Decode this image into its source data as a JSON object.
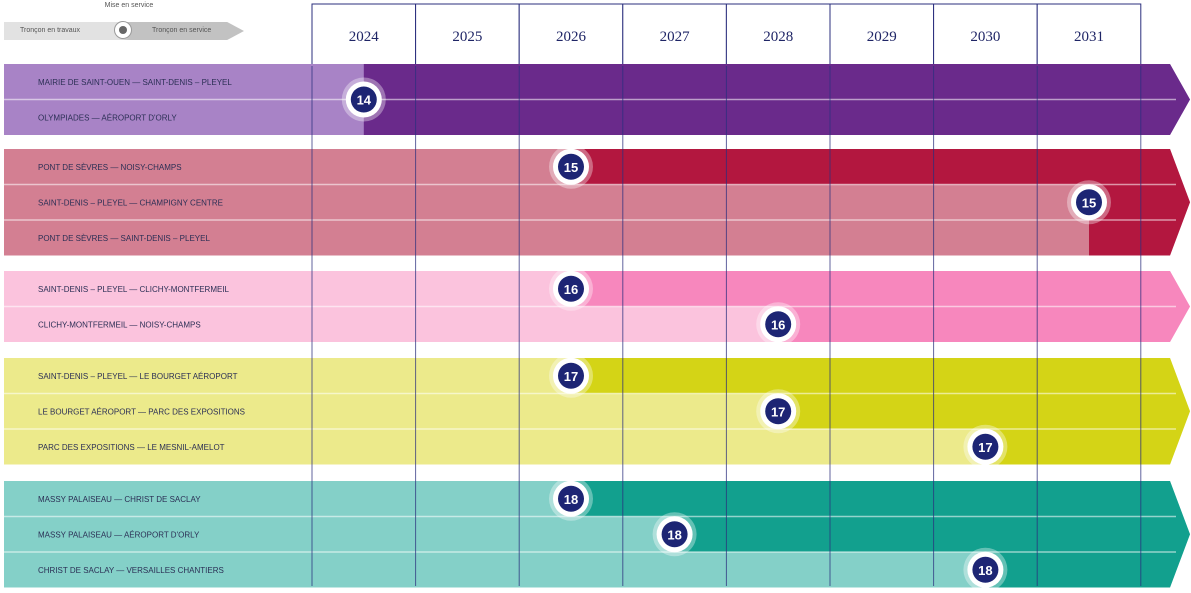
{
  "legend": {
    "title": "Mise en service",
    "under_construction_label": "Tronçon en travaux",
    "in_service_label": "Tronçon en service"
  },
  "chart_data": {
    "type": "timeline",
    "years": [
      "2024",
      "2025",
      "2026",
      "2027",
      "2028",
      "2029",
      "2030",
      "2031"
    ],
    "groups": [
      {
        "line": "14",
        "light_color": "#a883c6",
        "dark_color": "#6a2a8b",
        "sections": [
          {
            "label": "MAIRIE DE SAINT-OUEN — SAINT-DENIS – PLEYEL",
            "opening_year": 2024
          },
          {
            "label": "OLYMPIADES — AÉROPORT D'ORLY",
            "opening_year": 2024
          }
        ],
        "badges": [
          {
            "label": "14",
            "year": 2024
          }
        ]
      },
      {
        "line": "15",
        "light_color": "#d37f92",
        "dark_color": "#b3173f",
        "sections": [
          {
            "label": "PONT DE SÈVRES — NOISY-CHAMPS",
            "opening_year": 2026
          },
          {
            "label": "SAINT-DENIS – PLEYEL — CHAMPIGNY CENTRE",
            "opening_year": 2031
          },
          {
            "label": "PONT DE SÈVRES — SAINT-DENIS – PLEYEL",
            "opening_year": 2031
          }
        ],
        "badges": [
          {
            "label": "15",
            "year": 2026
          },
          {
            "label": "15",
            "year": 2031
          }
        ]
      },
      {
        "line": "16",
        "light_color": "#fbc3dd",
        "dark_color": "#f787bd",
        "sections": [
          {
            "label": "SAINT-DENIS – PLEYEL — CLICHY-MONTFERMEIL",
            "opening_year": 2026
          },
          {
            "label": "CLICHY-MONTFERMEIL — NOISY-CHAMPS",
            "opening_year": 2028
          }
        ],
        "badges": [
          {
            "label": "16",
            "year": 2026
          },
          {
            "label": "16",
            "year": 2028
          }
        ]
      },
      {
        "line": "17",
        "light_color": "#ecea8b",
        "dark_color": "#d4d416",
        "sections": [
          {
            "label": "SAINT-DENIS – PLEYEL — LE BOURGET AÉROPORT",
            "opening_year": 2026
          },
          {
            "label": "LE BOURGET AÉROPORT — PARC DES EXPOSITIONS",
            "opening_year": 2028
          },
          {
            "label": "PARC DES EXPOSITIONS — LE MESNIL-AMELOT",
            "opening_year": 2030
          }
        ],
        "badges": [
          {
            "label": "17",
            "year": 2026
          },
          {
            "label": "17",
            "year": 2028
          },
          {
            "label": "17",
            "year": 2030
          }
        ]
      },
      {
        "line": "18",
        "light_color": "#84d0c8",
        "dark_color": "#12a08e",
        "sections": [
          {
            "label": "MASSY PALAISEAU — CHRIST DE SACLAY",
            "opening_year": 2026
          },
          {
            "label": "MASSY PALAISEAU — AÉROPORT D'ORLY",
            "opening_year": 2027
          },
          {
            "label": "CHRIST DE SACLAY — VERSAILLES CHANTIERS",
            "opening_year": 2030
          }
        ],
        "badges": [
          {
            "label": "18",
            "year": 2026
          },
          {
            "label": "18",
            "year": 2027
          },
          {
            "label": "18",
            "year": 2030
          }
        ]
      }
    ]
  }
}
